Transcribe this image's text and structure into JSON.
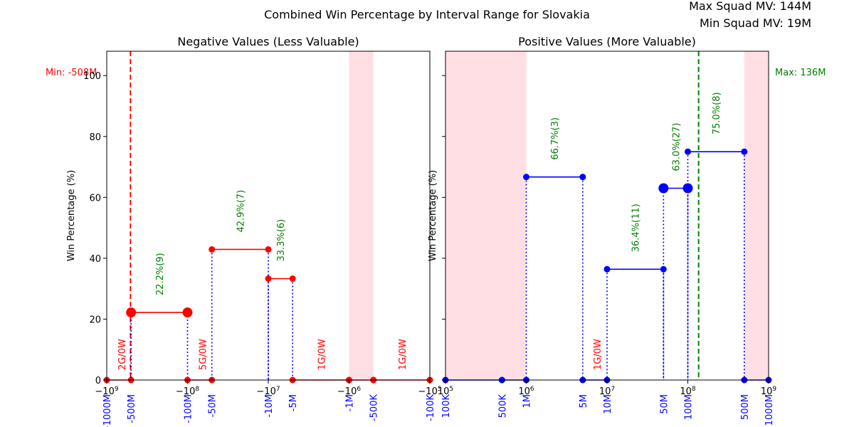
{
  "page": {
    "title": "Combined Win Percentage by Interval Range for Slovakia",
    "max_mv": "Max Squad MV: 144M",
    "min_mv": "Min Squad MV: 19M"
  },
  "colors": {
    "negative": "#ff0000",
    "positive": "#0000ff",
    "label": "#008000",
    "marker_line": "#0000ff",
    "shade": "#ffdde2",
    "min_line": "#ff0000",
    "max_line": "#008000"
  },
  "chart_data": [
    {
      "type": "line",
      "title": "Negative Values (Less Valuable)",
      "ylabel": "Win Percentage (%)",
      "xscale": "symlog",
      "xlim": [
        -1000000000,
        -100000
      ],
      "ylim": [
        0,
        108
      ],
      "yticks": [
        0,
        20,
        40,
        60,
        80,
        100
      ],
      "xticks": [
        {
          "v": -1000000000,
          "label": "−10^9"
        },
        {
          "v": -100000000,
          "label": "−10^8"
        },
        {
          "v": -10000000,
          "label": "−10^7"
        },
        {
          "v": -1000000,
          "label": "−10^6"
        },
        {
          "v": -100000,
          "label": "−10^5"
        }
      ],
      "interval_labels": [
        {
          "v": -1000000000,
          "label": "-1000M"
        },
        {
          "v": -500000000,
          "label": "-500M"
        },
        {
          "v": -100000000,
          "label": "-100M"
        },
        {
          "v": -50000000,
          "label": "-50M"
        },
        {
          "v": -10000000,
          "label": "-10M"
        },
        {
          "v": -5000000,
          "label": "-5M"
        },
        {
          "v": -1000000,
          "label": "-1M"
        },
        {
          "v": -500000,
          "label": "-500K"
        },
        {
          "v": -100000,
          "label": "-100K"
        }
      ],
      "shaded": [
        [
          -1000000,
          -500000
        ]
      ],
      "ref_line": {
        "v": -508000000,
        "label": "Min: -508M"
      },
      "segments": [
        {
          "x0": -1000000000,
          "x1": -500000000,
          "y": 0,
          "label": "",
          "rotated": true
        },
        {
          "x0": -500000000,
          "x1": -100000000,
          "y": 22.2,
          "label": "22.2%(9)",
          "big": true
        },
        {
          "x0": -100000000,
          "x1": -50000000,
          "y": 0,
          "label": ""
        },
        {
          "x0": -50000000,
          "x1": -10000000,
          "y": 42.9,
          "label": "42.9%(7)"
        },
        {
          "x0": -10000000,
          "x1": -5000000,
          "y": 33.3,
          "label": "33.3%(6)"
        },
        {
          "x0": -5000000,
          "x1": -1000000,
          "y": 0,
          "label": ""
        },
        {
          "x0": -1000000,
          "x1": -500000,
          "y": 0,
          "label": ""
        },
        {
          "x0": -500000,
          "x1": -100000,
          "y": 0,
          "label": ""
        }
      ],
      "zero_labels": [
        {
          "x": -650000000,
          "label": "2G/0W"
        },
        {
          "x": -65000000,
          "label": "5G/0W"
        },
        {
          "x": -2200000,
          "label": "1G/0W"
        },
        {
          "x": -220000,
          "label": "1G/0W"
        }
      ]
    },
    {
      "type": "line",
      "title": "Positive Values (More Valuable)",
      "ylabel": "Win Percentage (%)",
      "xscale": "log",
      "xlim": [
        100000,
        1000000000
      ],
      "ylim": [
        0,
        108
      ],
      "yticks": [
        0,
        20,
        40,
        60,
        80,
        100
      ],
      "xticks": [
        {
          "v": 100000,
          "label": "10^5"
        },
        {
          "v": 1000000,
          "label": "10^6"
        },
        {
          "v": 10000000,
          "label": "10^7"
        },
        {
          "v": 100000000,
          "label": "10^8"
        },
        {
          "v": 1000000000,
          "label": "10^9"
        }
      ],
      "interval_labels": [
        {
          "v": 100000,
          "label": "100K"
        },
        {
          "v": 500000,
          "label": "500K"
        },
        {
          "v": 1000000,
          "label": "1M"
        },
        {
          "v": 5000000,
          "label": "5M"
        },
        {
          "v": 10000000,
          "label": "10M"
        },
        {
          "v": 50000000,
          "label": "50M"
        },
        {
          "v": 100000000,
          "label": "100M"
        },
        {
          "v": 500000000,
          "label": "500M"
        },
        {
          "v": 1000000000,
          "label": "1000M"
        }
      ],
      "shaded": [
        [
          100000,
          500000
        ],
        [
          500000,
          1000000
        ],
        [
          500000000,
          1000000000
        ]
      ],
      "ref_line": {
        "v": 136000000,
        "label": "Max: 136M"
      },
      "segments": [
        {
          "x0": 100000,
          "x1": 500000,
          "y": 0,
          "label": ""
        },
        {
          "x0": 500000,
          "x1": 1000000,
          "y": 0,
          "label": ""
        },
        {
          "x0": 1000000,
          "x1": 5000000,
          "y": 66.7,
          "label": "66.7%(3)"
        },
        {
          "x0": 5000000,
          "x1": 10000000,
          "y": 0,
          "label": ""
        },
        {
          "x0": 10000000,
          "x1": 50000000,
          "y": 36.4,
          "label": "36.4%(11)"
        },
        {
          "x0": 50000000,
          "x1": 100000000,
          "y": 63.0,
          "label": "63.0%(27)",
          "big": true
        },
        {
          "x0": 100000000,
          "x1": 500000000,
          "y": 75.0,
          "label": "75.0%(8)"
        },
        {
          "x0": 500000000,
          "x1": 1000000000,
          "y": 0,
          "label": ""
        }
      ],
      "zero_labels": [
        {
          "x": 7500000,
          "label": "1G/0W"
        }
      ]
    }
  ]
}
